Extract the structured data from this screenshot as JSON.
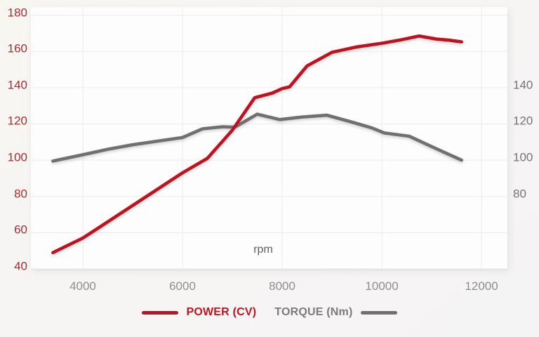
{
  "chart_data": {
    "type": "line",
    "title": "",
    "xlabel": "rpm",
    "grid": true,
    "legend_position": "bottom",
    "x_range": [
      2958,
      12520
    ],
    "y_range": [
      40,
      184.5
    ],
    "x_ticks": [
      4000,
      6000,
      8000,
      10000,
      12000
    ],
    "y_ticks_left": [
      180,
      160,
      140,
      120,
      100,
      80,
      60,
      40
    ],
    "y_ticks_right": [
      140,
      120,
      100,
      80
    ],
    "series": [
      {
        "name": "POWER (CV)",
        "color": "#bd1320",
        "points": [
          [
            3400,
            49
          ],
          [
            4000,
            57
          ],
          [
            4500,
            66
          ],
          [
            5000,
            75
          ],
          [
            5500,
            84
          ],
          [
            6000,
            93
          ],
          [
            6500,
            101
          ],
          [
            7000,
            116.5
          ],
          [
            7450,
            134.5
          ],
          [
            7800,
            137
          ],
          [
            8000,
            139.5
          ],
          [
            8150,
            140.5
          ],
          [
            8500,
            152
          ],
          [
            9000,
            159.5
          ],
          [
            9500,
            162.5
          ],
          [
            10000,
            164.5
          ],
          [
            10400,
            166.5
          ],
          [
            10750,
            168.5
          ],
          [
            11100,
            166.8
          ],
          [
            11350,
            166.2
          ],
          [
            11600,
            165.3
          ]
        ]
      },
      {
        "name": "TORQUE (Nm)",
        "color": "#707070",
        "points": [
          [
            3400,
            99.5
          ],
          [
            4000,
            103
          ],
          [
            4500,
            106
          ],
          [
            5000,
            108.5
          ],
          [
            5500,
            110.5
          ],
          [
            6000,
            112.5
          ],
          [
            6400,
            117.3
          ],
          [
            6800,
            118.4
          ],
          [
            7050,
            118.2
          ],
          [
            7500,
            125.4
          ],
          [
            7950,
            122.4
          ],
          [
            8400,
            123.8
          ],
          [
            8900,
            124.8
          ],
          [
            9400,
            121
          ],
          [
            9800,
            117.8
          ],
          [
            10050,
            115
          ],
          [
            10550,
            113.2
          ],
          [
            11000,
            107.5
          ],
          [
            11600,
            100
          ]
        ]
      }
    ]
  },
  "colors": {
    "power_line": "#bd1320",
    "power_text": "#bf1420",
    "torque_line": "#707070",
    "torque_text": "#7b7b7b",
    "left_ticks": "#ad2a33",
    "right_ticks": "#757575",
    "x_ticks": "#8e8e8e",
    "gridline": "#ececec",
    "plot_background": "#fdfdfd",
    "page_background": "#f7f5f4"
  }
}
